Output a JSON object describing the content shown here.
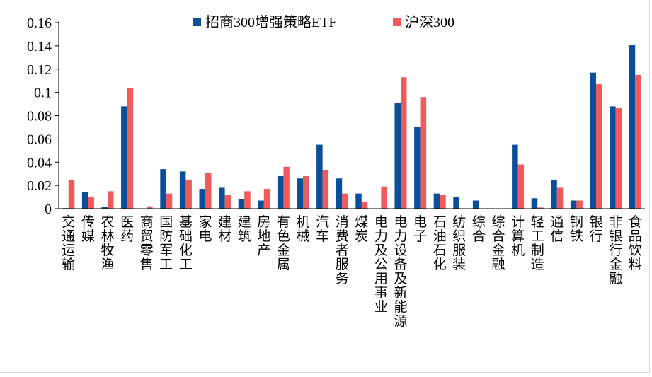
{
  "chart_data": {
    "type": "bar",
    "ylim": [
      0,
      0.16
    ],
    "yticks": [
      "0",
      "0.02",
      "0.04",
      "0.06",
      "0.08",
      "0.1",
      "0.12",
      "0.14",
      "0.16"
    ],
    "grid": false,
    "legend_position": "top-center",
    "categories": [
      "交通运输",
      "传媒",
      "农林牧渔",
      "医药",
      "商贸零售",
      "国防军工",
      "基础化工",
      "家电",
      "建材",
      "建筑",
      "房地产",
      "有色金属",
      "机械",
      "汽车",
      "消费者服务",
      "煤炭",
      "电力及公用事业",
      "电力设备及新能源",
      "电子",
      "石油石化",
      "纺织服装",
      "综合",
      "综合金融",
      "计算机",
      "轻工制造",
      "通信",
      "钢铁",
      "银行",
      "非银行金融",
      "食品饮料"
    ],
    "series": [
      {
        "name": "招商300增强策略ETF",
        "color": "#0B4F9A",
        "values": [
          0.0005,
          0.014,
          0.0015,
          0.088,
          0,
          0.034,
          0.032,
          0.017,
          0.018,
          0.008,
          0.007,
          0.028,
          0.026,
          0.055,
          0.026,
          0.013,
          0,
          0.091,
          0.07,
          0.013,
          0.01,
          0.007,
          0,
          0.055,
          0.009,
          0.025,
          0.007,
          0.117,
          0.088,
          0.141
        ]
      },
      {
        "name": "沪深300",
        "color": "#F05A5A",
        "values": [
          0.025,
          0.01,
          0.015,
          0.104,
          0.002,
          0.013,
          0.025,
          0.031,
          0.012,
          0.015,
          0.017,
          0.036,
          0.028,
          0.033,
          0.013,
          0.006,
          0.019,
          0.113,
          0.096,
          0.012,
          0,
          0,
          0,
          0.038,
          0.001,
          0.018,
          0.007,
          0.107,
          0.087,
          0.115
        ]
      }
    ]
  }
}
